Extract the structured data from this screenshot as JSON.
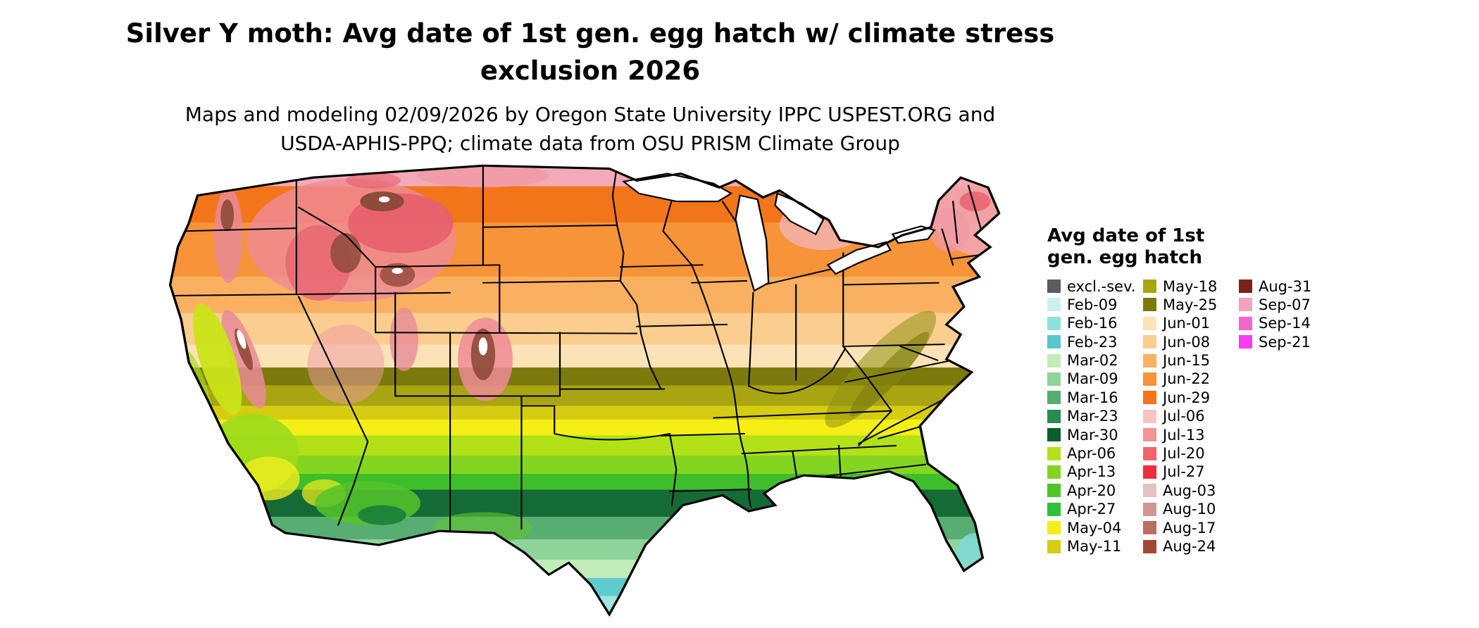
{
  "header": {
    "title_line1": "Silver Y moth: Avg date of 1st gen. egg hatch w/ climate stress",
    "title_line2": "exclusion 2026",
    "subtitle_line1": "Maps and modeling 02/09/2026 by Oregon State University IPPC USPEST.ORG and",
    "subtitle_line2": "USDA-APHIS-PPQ; climate data from OSU PRISM Climate Group"
  },
  "legend": {
    "title_line1": "Avg date of 1st",
    "title_line2": "gen. egg hatch",
    "columns": [
      {
        "entries": [
          {
            "label": "excl.-sev.",
            "color": "#585d61"
          },
          {
            "label": "Feb-09",
            "color": "#c9f2ec"
          },
          {
            "label": "Feb-16",
            "color": "#8fe0dd"
          },
          {
            "label": "Feb-23",
            "color": "#57c7cd"
          },
          {
            "label": "Mar-02",
            "color": "#c2ecba"
          },
          {
            "label": "Mar-09",
            "color": "#8fd49b"
          },
          {
            "label": "Mar-16",
            "color": "#57ad72"
          },
          {
            "label": "Mar-23",
            "color": "#2b8a51"
          },
          {
            "label": "Mar-30",
            "color": "#0d5e2f"
          },
          {
            "label": "Apr-06",
            "color": "#b2e118"
          },
          {
            "label": "Apr-13",
            "color": "#83d51f"
          },
          {
            "label": "Apr-20",
            "color": "#50c528"
          },
          {
            "label": "Apr-27",
            "color": "#2cc13a"
          },
          {
            "label": "May-04",
            "color": "#f5ef16"
          },
          {
            "label": "May-11",
            "color": "#d6cd12"
          }
        ]
      },
      {
        "entries": [
          {
            "label": "May-18",
            "color": "#a9a512"
          },
          {
            "label": "May-25",
            "color": "#7c7a0c"
          },
          {
            "label": "Jun-01",
            "color": "#fbe3b7"
          },
          {
            "label": "Jun-08",
            "color": "#fbcd8e"
          },
          {
            "label": "Jun-15",
            "color": "#fab061"
          },
          {
            "label": "Jun-22",
            "color": "#f79339"
          },
          {
            "label": "Jun-29",
            "color": "#f3751a"
          },
          {
            "label": "Jul-06",
            "color": "#f8c3c1"
          },
          {
            "label": "Jul-13",
            "color": "#f49396"
          },
          {
            "label": "Jul-20",
            "color": "#f0646d"
          },
          {
            "label": "Jul-27",
            "color": "#ec2f3f"
          },
          {
            "label": "Aug-03",
            "color": "#e2c3c3"
          },
          {
            "label": "Aug-10",
            "color": "#d09694"
          },
          {
            "label": "Aug-17",
            "color": "#ba6e61"
          },
          {
            "label": "Aug-24",
            "color": "#9e4a33"
          }
        ]
      },
      {
        "entries": [
          {
            "label": "Aug-31",
            "color": "#78221a"
          },
          {
            "label": "Sep-07",
            "color": "#f3a2c0"
          },
          {
            "label": "Sep-14",
            "color": "#f566ca"
          },
          {
            "label": "Sep-21",
            "color": "#fa3cf0"
          }
        ]
      }
    ]
  }
}
